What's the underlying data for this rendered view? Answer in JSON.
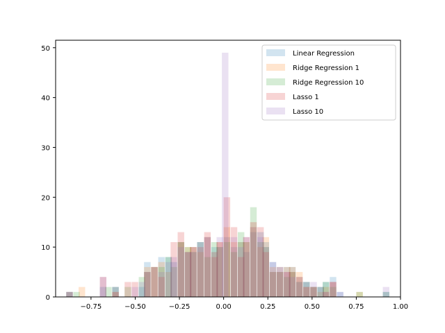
{
  "chart_data": {
    "type": "bar",
    "subtype": "overlaid-histogram",
    "title": "",
    "xlabel": "",
    "ylabel": "",
    "xlim": [
      -0.95,
      1.0
    ],
    "ylim": [
      0,
      51.5
    ],
    "grid": false,
    "legend_position": "top-right",
    "x_ticks": [
      -0.75,
      -0.5,
      -0.25,
      0.0,
      0.25,
      0.5,
      0.75,
      1.0
    ],
    "x_tick_labels": [
      "−0.75",
      "−0.50",
      "−0.25",
      "0.00",
      "0.25",
      "0.50",
      "0.75",
      "1.00"
    ],
    "y_ticks": [
      0,
      10,
      20,
      30,
      40,
      50
    ],
    "y_tick_labels": [
      "0",
      "10",
      "20",
      "30",
      "40",
      "50"
    ],
    "bin_width": 0.037,
    "series": [
      {
        "name": "Linear Regression",
        "color": "#1f77b4",
        "bins": [
          [
            -0.89,
            1
          ],
          [
            -0.7,
            2
          ],
          [
            -0.63,
            2
          ],
          [
            -0.48,
            2
          ],
          [
            -0.45,
            7
          ],
          [
            -0.37,
            8
          ],
          [
            -0.33,
            8
          ],
          [
            -0.3,
            7
          ],
          [
            -0.26,
            11
          ],
          [
            -0.22,
            9
          ],
          [
            -0.19,
            10
          ],
          [
            -0.15,
            11
          ],
          [
            -0.11,
            12
          ],
          [
            -0.07,
            10
          ],
          [
            -0.04,
            10
          ],
          [
            0.0,
            12
          ],
          [
            0.04,
            10
          ],
          [
            0.08,
            11
          ],
          [
            0.11,
            9
          ],
          [
            0.15,
            13
          ],
          [
            0.19,
            13
          ],
          [
            0.22,
            11
          ],
          [
            0.26,
            7
          ],
          [
            0.3,
            6
          ],
          [
            0.34,
            6
          ],
          [
            0.37,
            6
          ],
          [
            0.41,
            4
          ],
          [
            0.45,
            3
          ],
          [
            0.49,
            2
          ],
          [
            0.53,
            2
          ],
          [
            0.56,
            3
          ],
          [
            0.6,
            4
          ],
          [
            0.64,
            1
          ],
          [
            0.9,
            1
          ]
        ]
      },
      {
        "name": "Ridge Regression 1",
        "color": "#ff7f0e",
        "bins": [
          [
            -0.82,
            2
          ],
          [
            -0.63,
            1
          ],
          [
            -0.45,
            6
          ],
          [
            -0.41,
            6
          ],
          [
            -0.37,
            7
          ],
          [
            -0.33,
            5
          ],
          [
            -0.26,
            11
          ],
          [
            -0.22,
            10
          ],
          [
            -0.19,
            10
          ],
          [
            -0.15,
            9
          ],
          [
            -0.11,
            12
          ],
          [
            -0.07,
            9
          ],
          [
            -0.04,
            11
          ],
          [
            0.0,
            14
          ],
          [
            0.04,
            11
          ],
          [
            0.08,
            11
          ],
          [
            0.11,
            11
          ],
          [
            0.15,
            14
          ],
          [
            0.19,
            10
          ],
          [
            0.22,
            12
          ],
          [
            0.26,
            6
          ],
          [
            0.3,
            5
          ],
          [
            0.34,
            6
          ],
          [
            0.37,
            6
          ],
          [
            0.41,
            5
          ],
          [
            0.45,
            2
          ],
          [
            0.49,
            2
          ],
          [
            0.53,
            1
          ],
          [
            0.56,
            2
          ],
          [
            0.6,
            3
          ],
          [
            0.75,
            1
          ]
        ]
      },
      {
        "name": "Ridge Regression 10",
        "color": "#2ca02c",
        "bins": [
          [
            -0.89,
            1
          ],
          [
            -0.85,
            1
          ],
          [
            -0.67,
            2
          ],
          [
            -0.63,
            2
          ],
          [
            -0.56,
            2
          ],
          [
            -0.48,
            4
          ],
          [
            -0.45,
            5
          ],
          [
            -0.41,
            6
          ],
          [
            -0.37,
            6
          ],
          [
            -0.33,
            8
          ],
          [
            -0.3,
            6
          ],
          [
            -0.26,
            11
          ],
          [
            -0.22,
            10
          ],
          [
            -0.19,
            9
          ],
          [
            -0.15,
            11
          ],
          [
            -0.11,
            8
          ],
          [
            -0.07,
            11
          ],
          [
            -0.04,
            10
          ],
          [
            0.0,
            11
          ],
          [
            0.04,
            9
          ],
          [
            0.08,
            13
          ],
          [
            0.11,
            11
          ],
          [
            0.15,
            18
          ],
          [
            0.19,
            11
          ],
          [
            0.22,
            10
          ],
          [
            0.26,
            5
          ],
          [
            0.3,
            5
          ],
          [
            0.34,
            4
          ],
          [
            0.37,
            5
          ],
          [
            0.41,
            3
          ],
          [
            0.45,
            3
          ],
          [
            0.49,
            2
          ],
          [
            0.53,
            2
          ],
          [
            0.56,
            3
          ],
          [
            0.6,
            2
          ],
          [
            0.75,
            1
          ],
          [
            0.9,
            1
          ]
        ]
      },
      {
        "name": "Lasso 1",
        "color": "#d62728",
        "bins": [
          [
            -0.89,
            1
          ],
          [
            -0.7,
            4
          ],
          [
            -0.63,
            1
          ],
          [
            -0.56,
            3
          ],
          [
            -0.52,
            3
          ],
          [
            -0.45,
            5
          ],
          [
            -0.41,
            6
          ],
          [
            -0.37,
            4
          ],
          [
            -0.3,
            11
          ],
          [
            -0.26,
            13
          ],
          [
            -0.22,
            9
          ],
          [
            -0.19,
            10
          ],
          [
            -0.15,
            10
          ],
          [
            -0.11,
            13
          ],
          [
            -0.07,
            8
          ],
          [
            -0.04,
            11
          ],
          [
            0.0,
            20
          ],
          [
            0.04,
            14
          ],
          [
            0.08,
            8
          ],
          [
            0.11,
            12
          ],
          [
            0.15,
            15
          ],
          [
            0.19,
            14
          ],
          [
            0.22,
            9
          ],
          [
            0.26,
            5
          ],
          [
            0.3,
            6
          ],
          [
            0.34,
            5
          ],
          [
            0.37,
            5
          ],
          [
            0.41,
            4
          ],
          [
            0.45,
            2
          ],
          [
            0.49,
            2
          ],
          [
            0.56,
            1
          ],
          [
            0.6,
            3
          ]
        ]
      },
      {
        "name": "Lasso 10",
        "color": "#9467bd",
        "bins": [
          [
            -0.89,
            1
          ],
          [
            -0.7,
            4
          ],
          [
            -0.63,
            2
          ],
          [
            -0.52,
            2
          ],
          [
            -0.48,
            3
          ],
          [
            -0.45,
            5
          ],
          [
            -0.41,
            6
          ],
          [
            -0.37,
            5
          ],
          [
            -0.33,
            7
          ],
          [
            -0.3,
            8
          ],
          [
            -0.26,
            10
          ],
          [
            -0.22,
            9
          ],
          [
            -0.19,
            9
          ],
          [
            -0.15,
            11
          ],
          [
            -0.11,
            12
          ],
          [
            -0.07,
            9
          ],
          [
            -0.04,
            12
          ],
          [
            -0.01,
            49
          ],
          [
            0.04,
            12
          ],
          [
            0.08,
            10
          ],
          [
            0.11,
            12
          ],
          [
            0.15,
            14
          ],
          [
            0.19,
            12
          ],
          [
            0.22,
            10
          ],
          [
            0.26,
            7
          ],
          [
            0.3,
            5
          ],
          [
            0.34,
            5
          ],
          [
            0.37,
            4
          ],
          [
            0.41,
            3
          ],
          [
            0.45,
            3
          ],
          [
            0.49,
            3
          ],
          [
            0.53,
            2
          ],
          [
            0.56,
            1
          ],
          [
            0.6,
            3
          ],
          [
            0.64,
            1
          ],
          [
            0.9,
            2
          ]
        ]
      }
    ]
  }
}
